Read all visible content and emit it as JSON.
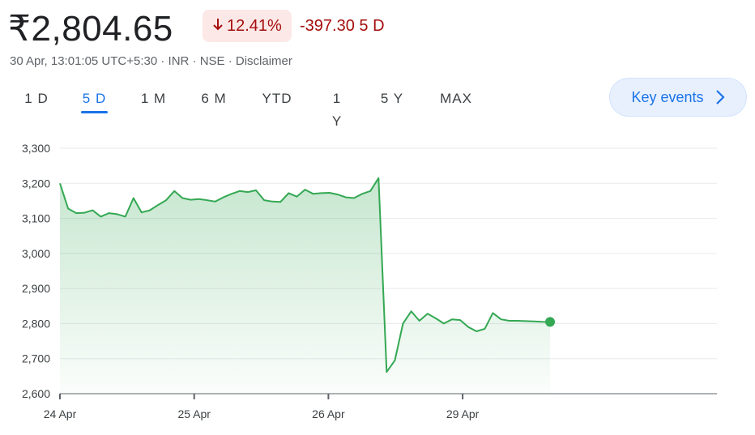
{
  "header": {
    "price": "₹2,804.65",
    "change_percent": "12.41%",
    "change_absolute": "-397.30",
    "change_period": "5 D",
    "meta": "30 Apr, 13:01:05 UTC+5:30 · INR · NSE · Disclaimer",
    "change_icon": "arrow-down-icon",
    "negative_color": "#a50e0e"
  },
  "ranges": [
    {
      "label": "1 D"
    },
    {
      "label": "5 D",
      "active": true
    },
    {
      "label": "1 M"
    },
    {
      "label": "6 M"
    },
    {
      "label": "YTD"
    },
    {
      "label": "1 Y"
    },
    {
      "label": "5 Y"
    },
    {
      "label": "MAX"
    }
  ],
  "key_events": {
    "label": "Key events",
    "icon": "chevron-right-icon"
  },
  "chart_data": {
    "type": "line",
    "line_color": "#34a853",
    "fill": "gradient-green",
    "ylim": [
      2600,
      3300
    ],
    "yticks": [
      2600,
      2700,
      2800,
      2900,
      3000,
      3100,
      3200,
      3300
    ],
    "ytick_labels": [
      "2,600",
      "2,700",
      "2,800",
      "2,900",
      "3,000",
      "3,100",
      "3,200",
      "3,300"
    ],
    "xticks": [
      "24 Apr",
      "25 Apr",
      "26 Apr",
      "29 Apr"
    ],
    "grid": true,
    "x_days": 4,
    "values": [
      3200,
      3128,
      3115,
      3116,
      3123,
      3105,
      3115,
      3112,
      3105,
      3158,
      3117,
      3123,
      3138,
      3152,
      3178,
      3158,
      3153,
      3155,
      3152,
      3148,
      3160,
      3170,
      3178,
      3175,
      3180,
      3152,
      3148,
      3147,
      3172,
      3162,
      3182,
      3170,
      3172,
      3173,
      3168,
      3160,
      3158,
      3170,
      3178,
      3215,
      2662,
      2695,
      2800,
      2835,
      2808,
      2828,
      2815,
      2800,
      2812,
      2810,
      2790,
      2778,
      2785,
      2830,
      2812,
      2808,
      2808,
      2807,
      2806,
      2805,
      2804.65
    ],
    "last_point_marker": true
  }
}
